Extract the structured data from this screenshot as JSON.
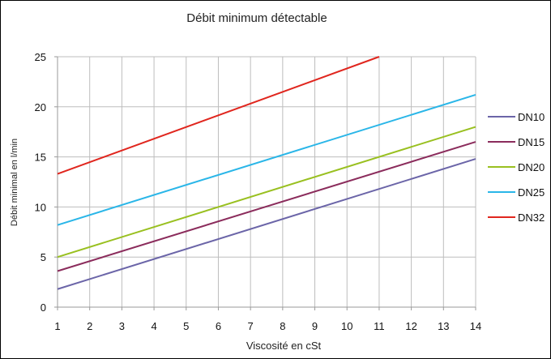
{
  "chart_data": {
    "type": "line",
    "title": "Débit minimum détectable",
    "xlabel": "Viscosité en cSt",
    "ylabel": "Débit minimal en l/min",
    "xlim": [
      1,
      14
    ],
    "ylim": [
      0,
      25
    ],
    "xticks": [
      "1",
      "2",
      "3",
      "4",
      "5",
      "6",
      "7",
      "8",
      "9",
      "10",
      "11",
      "12",
      "13",
      "14"
    ],
    "yticks": [
      "0",
      "5",
      "10",
      "15",
      "20",
      "25"
    ],
    "grid": true,
    "legend": "right",
    "series": [
      {
        "name": "DN10",
        "color": "#6b65a8",
        "x": [
          1,
          14
        ],
        "y": [
          1.8,
          14.8
        ]
      },
      {
        "name": "DN15",
        "color": "#8b2c5c",
        "x": [
          1,
          14
        ],
        "y": [
          3.6,
          16.5
        ]
      },
      {
        "name": "DN20",
        "color": "#99c020",
        "x": [
          1,
          14
        ],
        "y": [
          5.0,
          18.0
        ]
      },
      {
        "name": "DN25",
        "color": "#2ab6e8",
        "x": [
          1,
          14
        ],
        "y": [
          8.2,
          21.2
        ]
      },
      {
        "name": "DN32",
        "color": "#e0261e",
        "x": [
          1,
          11
        ],
        "y": [
          13.3,
          25.0
        ]
      }
    ]
  }
}
